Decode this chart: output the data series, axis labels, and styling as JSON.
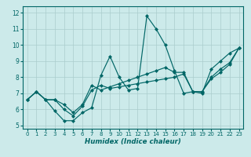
{
  "xlabel": "Humidex (Indice chaleur)",
  "bg_color": "#cceaea",
  "grid_color": "#aacccc",
  "line_color": "#006666",
  "xlim": [
    -0.5,
    23.5
  ],
  "ylim": [
    4.8,
    12.4
  ],
  "yticks": [
    5,
    6,
    7,
    8,
    9,
    10,
    11,
    12
  ],
  "xticks": [
    0,
    1,
    2,
    3,
    4,
    5,
    6,
    7,
    8,
    9,
    10,
    11,
    12,
    13,
    14,
    15,
    16,
    17,
    18,
    19,
    20,
    21,
    22,
    23
  ],
  "lines": [
    {
      "x": [
        0,
        1,
        2,
        3,
        4,
        5,
        6,
        7,
        8,
        9,
        10,
        11,
        12,
        13,
        14,
        15,
        16,
        17,
        18,
        19,
        20,
        21,
        22,
        23
      ],
      "y": [
        6.6,
        7.1,
        6.6,
        5.9,
        5.3,
        5.3,
        5.8,
        6.1,
        8.1,
        9.3,
        8.0,
        7.2,
        7.3,
        11.8,
        11.0,
        10.0,
        8.4,
        7.0,
        7.1,
        7.0,
        8.5,
        9.0,
        9.5,
        9.8
      ]
    },
    {
      "x": [
        0,
        1,
        2,
        3,
        4,
        5,
        6,
        7,
        8,
        9,
        10,
        11,
        12,
        13,
        14,
        15,
        16,
        17,
        18,
        19,
        20,
        21,
        22,
        23
      ],
      "y": [
        6.6,
        7.1,
        6.6,
        6.6,
        6.0,
        5.6,
        6.2,
        7.2,
        7.5,
        7.3,
        7.4,
        7.5,
        7.6,
        7.7,
        7.8,
        7.9,
        8.0,
        8.2,
        7.1,
        7.1,
        7.9,
        8.3,
        8.8,
        9.8
      ]
    },
    {
      "x": [
        0,
        1,
        2,
        3,
        4,
        5,
        6,
        7,
        8,
        9,
        10,
        11,
        12,
        13,
        14,
        15,
        16,
        17,
        18,
        19,
        20,
        21,
        22,
        23
      ],
      "y": [
        6.6,
        7.1,
        6.6,
        6.6,
        6.3,
        5.8,
        6.3,
        7.5,
        7.2,
        7.4,
        7.6,
        7.8,
        8.0,
        8.2,
        8.4,
        8.6,
        8.3,
        8.3,
        7.1,
        7.1,
        8.0,
        8.5,
        8.9,
        9.8
      ]
    }
  ],
  "marker": "D",
  "markersize": 2.0,
  "linewidth": 0.85,
  "label_fontsize": 5.5,
  "xlabel_fontsize": 6.2,
  "tick_fontsize": 5.0
}
